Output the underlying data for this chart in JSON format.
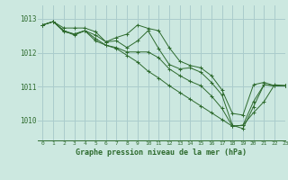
{
  "background_color": "#cce8e0",
  "grid_color": "#aacccc",
  "line_color": "#2d6a2d",
  "title": "Graphe pression niveau de la mer (hPa)",
  "xlim": [
    -0.5,
    23
  ],
  "ylim": [
    1009.4,
    1013.4
  ],
  "yticks": [
    1010,
    1011,
    1012,
    1013
  ],
  "xticks": [
    0,
    1,
    2,
    3,
    4,
    5,
    6,
    7,
    8,
    9,
    10,
    11,
    12,
    13,
    14,
    15,
    16,
    17,
    18,
    19,
    20,
    21,
    22,
    23
  ],
  "series": [
    {
      "x": [
        0,
        1,
        2,
        3,
        4,
        5,
        6,
        7,
        8,
        9,
        10,
        11,
        12,
        13,
        14,
        15,
        16,
        17,
        18,
        19,
        20,
        21,
        22,
        23
      ],
      "y": [
        1012.82,
        1012.92,
        1012.73,
        1012.73,
        1012.73,
        1012.62,
        1012.32,
        1012.45,
        1012.55,
        1012.82,
        1012.72,
        1012.65,
        1012.15,
        1011.75,
        1011.62,
        1011.55,
        1011.32,
        1010.9,
        1010.2,
        1010.15,
        1011.05,
        1011.12,
        1011.02,
        1011.02
      ]
    },
    {
      "x": [
        0,
        1,
        2,
        3,
        4,
        5,
        6,
        7,
        8,
        9,
        10,
        11,
        12,
        13,
        14,
        15,
        16,
        17,
        18,
        19,
        20,
        21,
        22,
        23
      ],
      "y": [
        1012.82,
        1012.92,
        1012.62,
        1012.55,
        1012.65,
        1012.52,
        1012.32,
        1012.35,
        1012.15,
        1012.35,
        1012.65,
        1012.12,
        1011.65,
        1011.52,
        1011.55,
        1011.42,
        1011.12,
        1010.75,
        1009.85,
        1009.75,
        1010.4,
        1011.05,
        1011.02,
        1011.02
      ]
    },
    {
      "x": [
        0,
        1,
        2,
        3,
        4,
        5,
        6,
        7,
        8,
        9,
        10,
        11,
        12,
        13,
        14,
        15,
        16,
        17,
        18,
        19,
        20,
        21,
        22,
        23
      ],
      "y": [
        1012.82,
        1012.92,
        1012.65,
        1012.55,
        1012.65,
        1012.42,
        1012.22,
        1012.15,
        1012.02,
        1012.02,
        1012.02,
        1011.85,
        1011.52,
        1011.32,
        1011.15,
        1011.02,
        1010.72,
        1010.35,
        1009.82,
        1009.85,
        1010.55,
        1011.05,
        1011.02,
        1011.02
      ]
    },
    {
      "x": [
        0,
        1,
        2,
        3,
        4,
        5,
        6,
        7,
        8,
        9,
        10,
        11,
        12,
        13,
        14,
        15,
        16,
        17,
        18,
        19,
        20,
        21,
        22,
        23
      ],
      "y": [
        1012.82,
        1012.92,
        1012.65,
        1012.52,
        1012.65,
        1012.35,
        1012.22,
        1012.12,
        1011.92,
        1011.72,
        1011.45,
        1011.25,
        1011.02,
        1010.82,
        1010.62,
        1010.42,
        1010.22,
        1010.02,
        1009.82,
        1009.85,
        1010.22,
        1010.55,
        1011.05,
        1011.02
      ]
    }
  ]
}
